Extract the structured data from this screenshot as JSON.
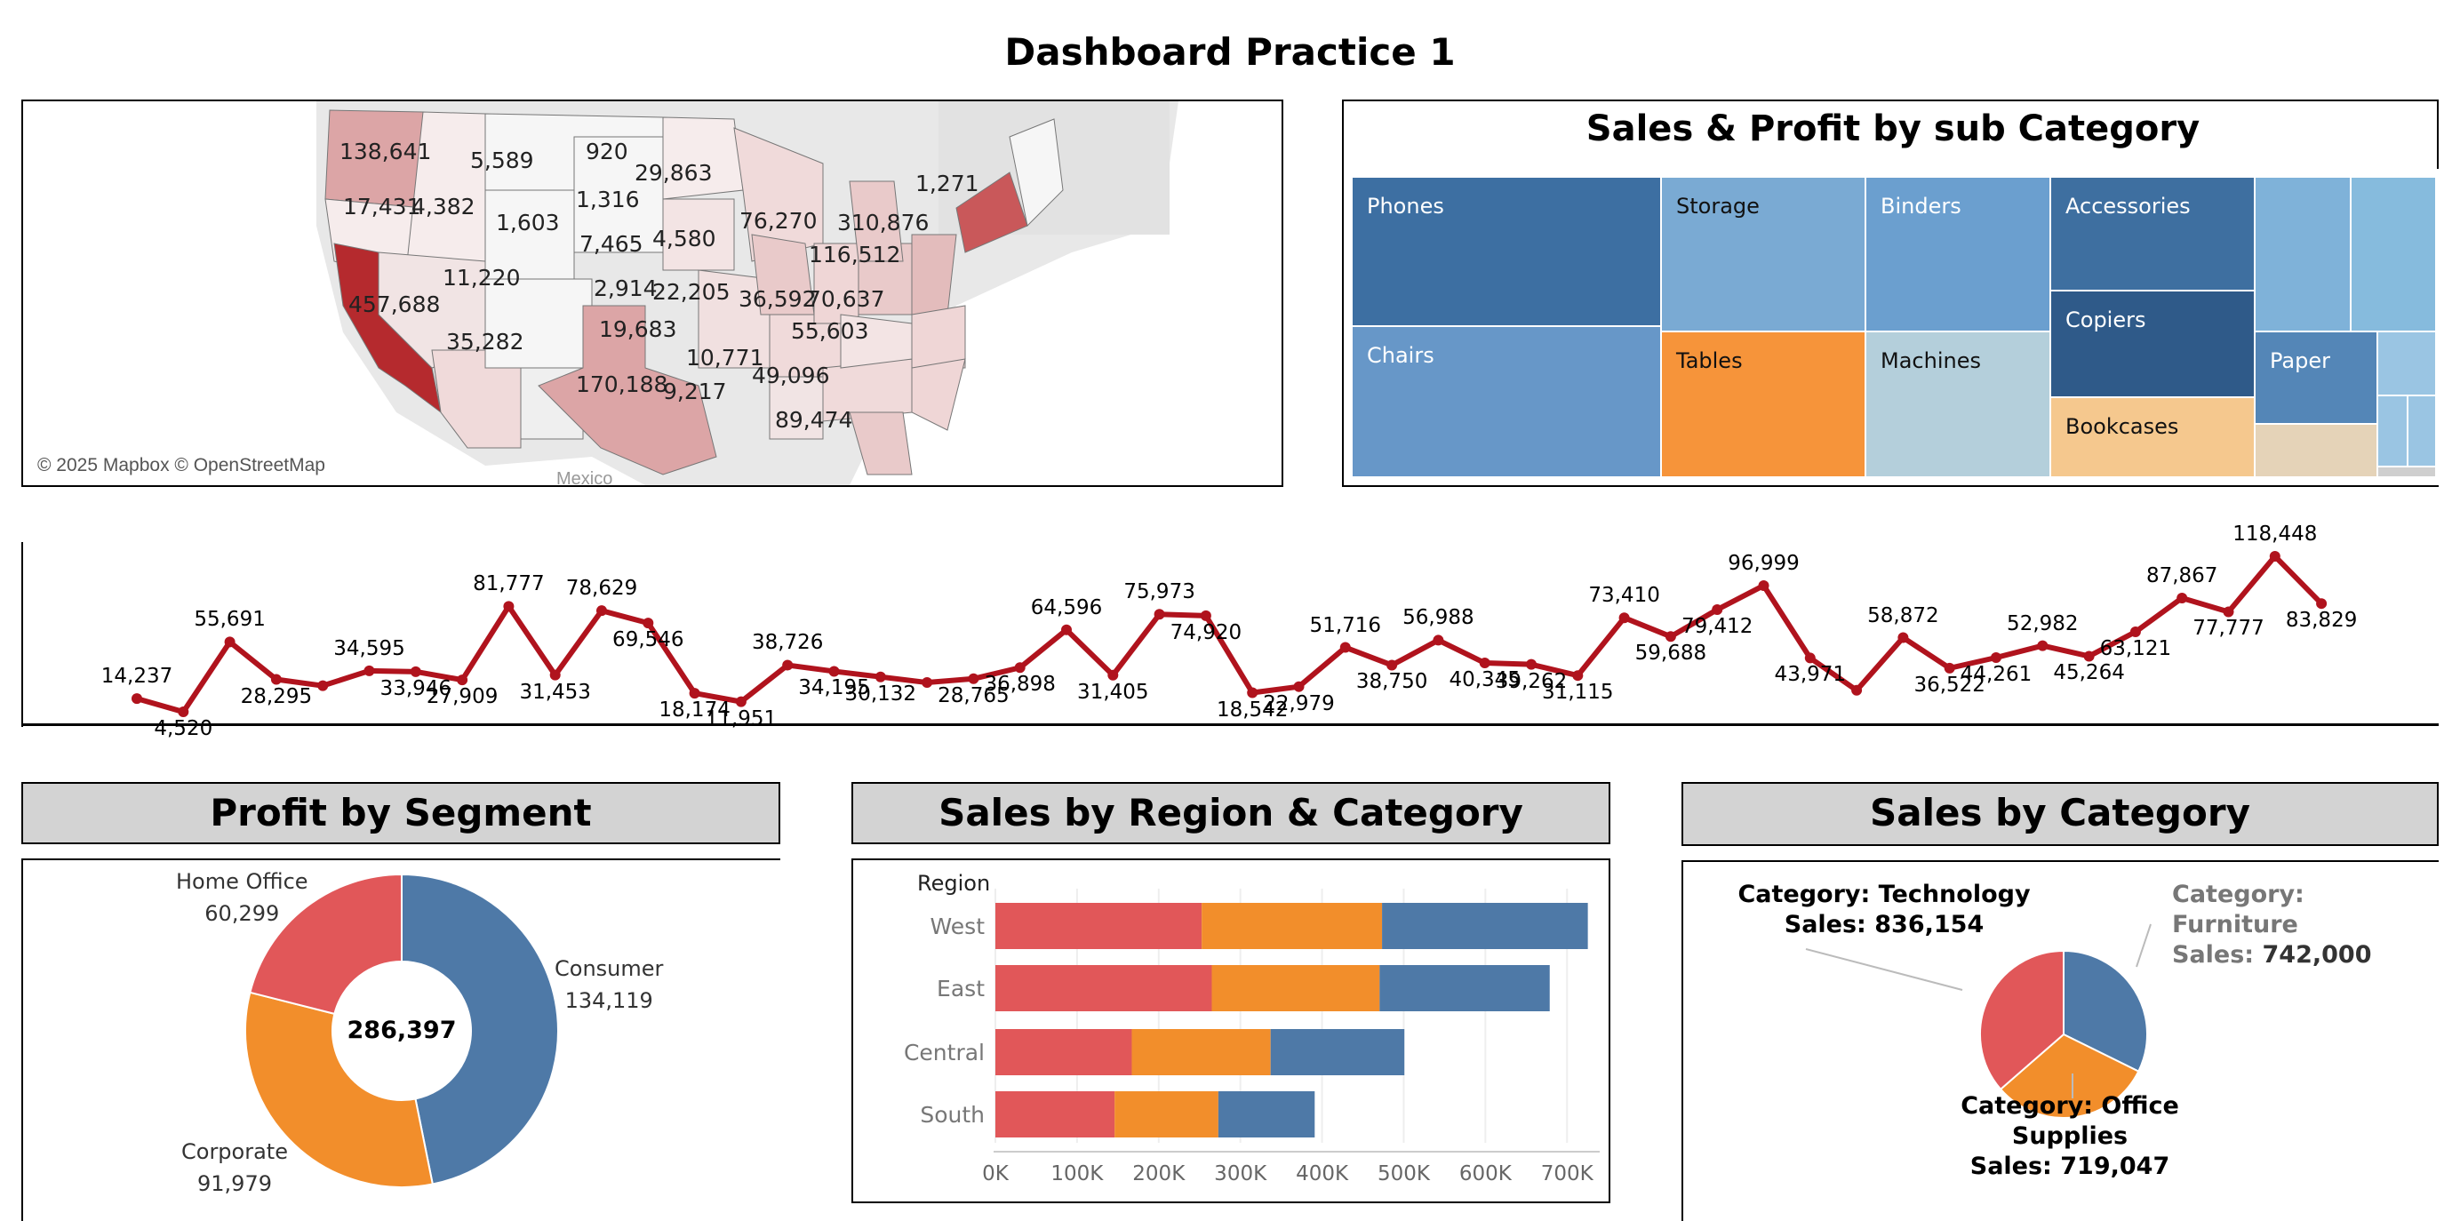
{
  "dashboard": {
    "title": "Dashboard Practice 1"
  },
  "map": {
    "attribution": "© 2025 Mapbox © OpenStreetMap",
    "country_label": "Mexico",
    "state_values": [
      "138,641",
      "5,589",
      "920",
      "29,863",
      "1,271",
      "17,431",
      "4,382",
      "1,316",
      "1,603",
      "76,270",
      "310,876",
      "7,465",
      "4,580",
      "116,512",
      "2,914",
      "22,205",
      "36,592",
      "70,637",
      "11,220",
      "457,688",
      "19,683",
      "55,603",
      "35,282",
      "10,771",
      "170,188",
      "9,217",
      "49,096",
      "89,474"
    ],
    "colors": {
      "low": "#f3e6e6",
      "high": "#b52a2e"
    }
  },
  "treemap": {
    "title": "Sales & Profit by sub Category",
    "cells": [
      {
        "label": "Phones",
        "color": "#3d6fa2"
      },
      {
        "label": "Storage",
        "color": "#7aaad3"
      },
      {
        "label": "Binders",
        "color": "#6b9fcf"
      },
      {
        "label": "Accessories",
        "color": "#3e6fa0"
      },
      {
        "label": "Chairs",
        "color": "#6797c8"
      },
      {
        "label": "Tables",
        "color": "#f6943a"
      },
      {
        "label": "Machines",
        "color": "#b4cfdb"
      },
      {
        "label": "Copiers",
        "color": "#2f5a89"
      },
      {
        "label": "Bookcases",
        "color": "#f5c88e"
      },
      {
        "label": "Paper",
        "color": "#5486b7"
      }
    ]
  },
  "line_chart": {
    "chart_data": {
      "type": "line",
      "series": [
        {
          "values": [
            14237,
            4520,
            55691,
            28295,
            23648,
            34595,
            33946,
            27909,
            81777,
            31453,
            78629,
            69546,
            18174,
            11951,
            38726,
            34195,
            30132,
            26000,
            28765,
            36898,
            64596,
            31405,
            75973,
            74920,
            18542,
            22979,
            51716,
            38750,
            56988,
            40345,
            39262,
            31115,
            73410,
            59688,
            79412,
            96999,
            43971,
            20301,
            58872,
            36522,
            44261,
            52982,
            45264,
            63121,
            87867,
            77777,
            118448,
            83829
          ]
        }
      ],
      "data_labels": [
        "14,237",
        "4,520",
        "55,691",
        "28,295",
        "",
        "34,595",
        "33,946",
        "27,909",
        "81,777",
        "31,453",
        "78,629",
        "69,546",
        "18,174",
        "11,951",
        "38,726",
        "34,195",
        "30,132",
        "",
        "28,765",
        "36,898",
        "64,596",
        "31,405",
        "75,973",
        "74,920",
        "18,542",
        "22,979",
        "51,716",
        "38,750",
        "56,988",
        "40,345",
        "39,262",
        "31,115",
        "73,410",
        "59,688",
        "79,412",
        "96,999",
        "43,971",
        "",
        "58,872",
        "36,522",
        "44,261",
        "52,982",
        "45,264",
        "63,121",
        "87,867",
        "77,777",
        "118,448",
        "83,829"
      ],
      "color": "#b0131d"
    }
  },
  "segment": {
    "title": "Profit by Segment",
    "center_label": "286,397",
    "chart_data": {
      "type": "pie",
      "slices": [
        {
          "name": "Consumer",
          "value_label": "134,119",
          "value": 134119,
          "color": "#4e79a7"
        },
        {
          "name": "Corporate",
          "value_label": "91,979",
          "value": 91979,
          "color": "#f28e2b"
        },
        {
          "name": "Home Office",
          "value_label": "60,299",
          "value": 60299,
          "color": "#e15759"
        }
      ]
    }
  },
  "region": {
    "title": "Sales by Region & Category",
    "axis_title": "Region",
    "chart_data": {
      "type": "bar",
      "categories": [
        "West",
        "East",
        "Central",
        "South"
      ],
      "series": [
        {
          "values": [
            252612,
            264974,
            167026,
            146000
          ],
          "color": "#e15759"
        },
        {
          "values": [
            220853,
            205516,
            170000,
            127000
          ],
          "color": "#f28e2b"
        },
        {
          "values": [
            251991,
            208291,
            163797,
            118000
          ],
          "color": "#4e79a7"
        }
      ],
      "ticks": [
        "0K",
        "100K",
        "200K",
        "300K",
        "400K",
        "500K",
        "600K",
        "700K"
      ],
      "xlim": [
        0,
        740000
      ]
    }
  },
  "category": {
    "title": "Sales by Category",
    "chart_data": {
      "type": "pie",
      "slices": [
        {
          "name": "Furniture",
          "value": 742000,
          "color": "#4e79a7"
        },
        {
          "name": "Office Supplies",
          "value": 719047,
          "color": "#f28e2b"
        },
        {
          "name": "Technology",
          "value": 836154,
          "color": "#e15759"
        }
      ]
    },
    "label_technology": [
      "Category: Technology",
      "Sales: 836,154"
    ],
    "label_furniture_key": [
      "Category:",
      "Furniture",
      "Sales:"
    ],
    "label_furniture_value": "742,000",
    "label_office": [
      "Category: Office",
      "Supplies",
      "Sales: 719,047"
    ]
  }
}
